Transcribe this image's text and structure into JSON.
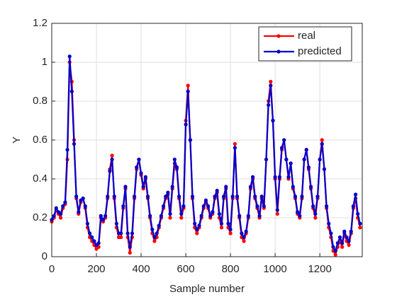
{
  "chart_data": {
    "type": "line",
    "xlabel": "Sample number",
    "ylabel": "Y",
    "x": [
      0,
      10,
      20,
      30,
      40,
      50,
      60,
      70,
      80,
      90,
      100,
      110,
      120,
      130,
      140,
      150,
      160,
      170,
      180,
      190,
      200,
      210,
      220,
      230,
      240,
      250,
      260,
      270,
      280,
      290,
      300,
      310,
      320,
      330,
      340,
      350,
      360,
      370,
      380,
      390,
      400,
      410,
      420,
      430,
      440,
      450,
      460,
      470,
      480,
      490,
      500,
      510,
      520,
      530,
      540,
      550,
      560,
      570,
      580,
      590,
      600,
      610,
      620,
      630,
      640,
      650,
      660,
      670,
      680,
      690,
      700,
      710,
      720,
      730,
      740,
      750,
      760,
      770,
      780,
      790,
      800,
      810,
      820,
      830,
      840,
      850,
      860,
      870,
      880,
      890,
      900,
      910,
      920,
      930,
      940,
      950,
      960,
      970,
      980,
      990,
      1000,
      1010,
      1020,
      1030,
      1040,
      1050,
      1060,
      1070,
      1080,
      1090,
      1100,
      1110,
      1120,
      1130,
      1140,
      1150,
      1160,
      1170,
      1180,
      1190,
      1200,
      1210,
      1220,
      1230,
      1240,
      1250,
      1260,
      1270,
      1280,
      1290,
      1300,
      1310,
      1320,
      1330,
      1340,
      1350,
      1360,
      1370,
      1380
    ],
    "series": [
      {
        "name": "real",
        "color": "#ff0000",
        "values": [
          0.18,
          0.2,
          0.24,
          0.22,
          0.2,
          0.25,
          0.27,
          0.5,
          1.0,
          0.9,
          0.6,
          0.3,
          0.22,
          0.28,
          0.3,
          0.25,
          0.15,
          0.1,
          0.08,
          0.06,
          0.04,
          0.05,
          0.2,
          0.18,
          0.2,
          0.3,
          0.45,
          0.52,
          0.3,
          0.15,
          0.1,
          0.1,
          0.25,
          0.35,
          0.1,
          0.02,
          0.1,
          0.3,
          0.45,
          0.5,
          0.42,
          0.35,
          0.4,
          0.3,
          0.2,
          0.12,
          0.08,
          0.1,
          0.15,
          0.2,
          0.25,
          0.3,
          0.32,
          0.2,
          0.35,
          0.48,
          0.45,
          0.3,
          0.2,
          0.25,
          0.7,
          0.88,
          0.6,
          0.3,
          0.15,
          0.12,
          0.15,
          0.2,
          0.25,
          0.28,
          0.25,
          0.2,
          0.22,
          0.3,
          0.33,
          0.2,
          0.15,
          0.3,
          0.35,
          0.15,
          0.12,
          0.3,
          0.58,
          0.3,
          0.2,
          0.1,
          0.08,
          0.12,
          0.2,
          0.35,
          0.4,
          0.3,
          0.25,
          0.2,
          0.3,
          0.25,
          0.5,
          0.8,
          0.9,
          0.7,
          0.4,
          0.22,
          0.4,
          0.55,
          0.6,
          0.5,
          0.4,
          0.48,
          0.35,
          0.3,
          0.22,
          0.2,
          0.3,
          0.5,
          0.55,
          0.45,
          0.35,
          0.25,
          0.2,
          0.3,
          0.5,
          0.6,
          0.45,
          0.25,
          0.15,
          0.1,
          0.03,
          0.01,
          0.05,
          0.08,
          0.05,
          0.12,
          0.08,
          0.06,
          0.12,
          0.25,
          0.3,
          0.2,
          0.15
        ]
      },
      {
        "name": "predicted",
        "color": "#0000cc",
        "values": [
          0.19,
          0.21,
          0.25,
          0.23,
          0.22,
          0.26,
          0.28,
          0.55,
          1.03,
          0.85,
          0.58,
          0.31,
          0.23,
          0.29,
          0.3,
          0.26,
          0.17,
          0.12,
          0.1,
          0.08,
          0.06,
          0.07,
          0.21,
          0.19,
          0.21,
          0.31,
          0.44,
          0.5,
          0.31,
          0.17,
          0.12,
          0.12,
          0.26,
          0.36,
          0.12,
          0.05,
          0.12,
          0.31,
          0.46,
          0.5,
          0.43,
          0.36,
          0.41,
          0.31,
          0.21,
          0.14,
          0.1,
          0.12,
          0.16,
          0.21,
          0.26,
          0.31,
          0.33,
          0.22,
          0.36,
          0.5,
          0.46,
          0.31,
          0.22,
          0.26,
          0.68,
          0.85,
          0.6,
          0.31,
          0.17,
          0.14,
          0.16,
          0.21,
          0.26,
          0.29,
          0.26,
          0.21,
          0.23,
          0.31,
          0.34,
          0.22,
          0.17,
          0.31,
          0.36,
          0.17,
          0.14,
          0.31,
          0.56,
          0.31,
          0.21,
          0.12,
          0.1,
          0.13,
          0.21,
          0.36,
          0.41,
          0.31,
          0.26,
          0.21,
          0.31,
          0.26,
          0.5,
          0.78,
          0.88,
          0.7,
          0.41,
          0.24,
          0.41,
          0.56,
          0.6,
          0.5,
          0.41,
          0.48,
          0.36,
          0.31,
          0.23,
          0.21,
          0.31,
          0.5,
          0.55,
          0.46,
          0.36,
          0.26,
          0.22,
          0.31,
          0.5,
          0.58,
          0.45,
          0.26,
          0.17,
          0.12,
          0.05,
          0.03,
          0.07,
          0.1,
          0.07,
          0.13,
          0.1,
          0.08,
          0.13,
          0.26,
          0.32,
          0.22,
          0.17
        ]
      }
    ],
    "xlim": [
      0,
      1390
    ],
    "ylim": [
      0,
      1.2
    ],
    "xticks": [
      0,
      200,
      400,
      600,
      800,
      1000,
      1200
    ],
    "yticks": [
      0,
      0.2,
      0.4,
      0.6,
      0.8,
      1,
      1.2
    ],
    "grid": true,
    "legend": "upper right"
  }
}
